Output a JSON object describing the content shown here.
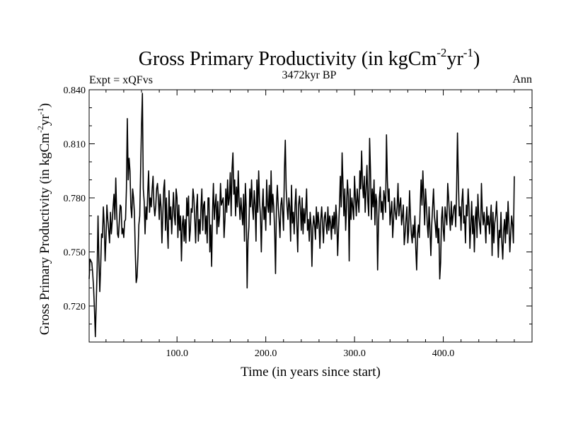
{
  "chart_data": {
    "type": "line",
    "title": "Gross Primary Productivity (in kgCm",
    "title_sup1": "-2",
    "title_mid": "yr",
    "title_sup2": "-1",
    "title_end": ")",
    "subtitle": "3472kyr BP",
    "left_label": "Expt = xQFvs",
    "right_label": "Ann",
    "xlabel": "Time (in years since start)",
    "ylabel_main": "Gross Primary Productivity (in kgCm",
    "ylabel_sup1": "-2",
    "ylabel_mid": "yr",
    "ylabel_sup2": "-1",
    "ylabel_end": ")",
    "xlim": [
      1,
      500
    ],
    "ylim": [
      0.7,
      0.84
    ],
    "xticks": [
      100,
      200,
      300,
      400
    ],
    "xtick_labels": [
      "100.0",
      "200.0",
      "300.0",
      "400.0"
    ],
    "yticks": [
      0.72,
      0.75,
      0.78,
      0.81,
      0.84
    ],
    "ytick_labels": [
      "0.720",
      "0.750",
      "0.780",
      "0.810",
      "0.840"
    ],
    "series": [
      {
        "name": "Gross Primary Productivity",
        "x_start": 1,
        "x_step": 1,
        "values": [
          0.735,
          0.746,
          0.745,
          0.744,
          0.738,
          0.73,
          0.718,
          0.703,
          0.722,
          0.74,
          0.77,
          0.745,
          0.728,
          0.742,
          0.76,
          0.758,
          0.775,
          0.765,
          0.745,
          0.758,
          0.776,
          0.768,
          0.762,
          0.755,
          0.772,
          0.76,
          0.767,
          0.775,
          0.782,
          0.768,
          0.791,
          0.772,
          0.76,
          0.758,
          0.767,
          0.776,
          0.775,
          0.76,
          0.763,
          0.758,
          0.767,
          0.768,
          0.785,
          0.824,
          0.79,
          0.802,
          0.795,
          0.775,
          0.769,
          0.785,
          0.78,
          0.772,
          0.75,
          0.733,
          0.736,
          0.748,
          0.765,
          0.77,
          0.795,
          0.82,
          0.838,
          0.785,
          0.778,
          0.76,
          0.775,
          0.768,
          0.783,
          0.795,
          0.772,
          0.78,
          0.775,
          0.785,
          0.792,
          0.776,
          0.77,
          0.775,
          0.785,
          0.788,
          0.78,
          0.768,
          0.782,
          0.775,
          0.755,
          0.77,
          0.785,
          0.79,
          0.762,
          0.78,
          0.764,
          0.752,
          0.784,
          0.768,
          0.775,
          0.76,
          0.772,
          0.783,
          0.77,
          0.765,
          0.785,
          0.78,
          0.758,
          0.776,
          0.762,
          0.77,
          0.745,
          0.765,
          0.77,
          0.756,
          0.768,
          0.755,
          0.78,
          0.77,
          0.781,
          0.756,
          0.762,
          0.774,
          0.772,
          0.785,
          0.78,
          0.768,
          0.755,
          0.775,
          0.782,
          0.756,
          0.768,
          0.76,
          0.775,
          0.785,
          0.762,
          0.776,
          0.778,
          0.76,
          0.77,
          0.755,
          0.78,
          0.78,
          0.75,
          0.765,
          0.742,
          0.772,
          0.788,
          0.768,
          0.776,
          0.782,
          0.76,
          0.778,
          0.764,
          0.77,
          0.788,
          0.776,
          0.778,
          0.78,
          0.758,
          0.768,
          0.785,
          0.772,
          0.79,
          0.776,
          0.78,
          0.794,
          0.77,
          0.796,
          0.805,
          0.782,
          0.79,
          0.77,
          0.786,
          0.775,
          0.795,
          0.778,
          0.768,
          0.78,
          0.772,
          0.765,
          0.782,
          0.756,
          0.788,
          0.775,
          0.73,
          0.756,
          0.764,
          0.785,
          0.775,
          0.79,
          0.775,
          0.768,
          0.784,
          0.776,
          0.756,
          0.79,
          0.772,
          0.795,
          0.778,
          0.77,
          0.75,
          0.774,
          0.785,
          0.768,
          0.775,
          0.762,
          0.79,
          0.776,
          0.772,
          0.787,
          0.765,
          0.795,
          0.772,
          0.782,
          0.775,
          0.762,
          0.738,
          0.775,
          0.787,
          0.776,
          0.768,
          0.758,
          0.776,
          0.78,
          0.772,
          0.762,
          0.795,
          0.812,
          0.785,
          0.775,
          0.768,
          0.78,
          0.775,
          0.756,
          0.787,
          0.766,
          0.772,
          0.76,
          0.776,
          0.785,
          0.765,
          0.75,
          0.776,
          0.781,
          0.774,
          0.762,
          0.78,
          0.76,
          0.774,
          0.766,
          0.773,
          0.785,
          0.762,
          0.768,
          0.756,
          0.772,
          0.765,
          0.742,
          0.763,
          0.77,
          0.765,
          0.757,
          0.775,
          0.763,
          0.772,
          0.765,
          0.752,
          0.768,
          0.775,
          0.765,
          0.755,
          0.769,
          0.772,
          0.765,
          0.76,
          0.775,
          0.762,
          0.77,
          0.766,
          0.757,
          0.77,
          0.763,
          0.772,
          0.76,
          0.776,
          0.768,
          0.748,
          0.763,
          0.775,
          0.792,
          0.775,
          0.805,
          0.788,
          0.77,
          0.785,
          0.762,
          0.775,
          0.79,
          0.781,
          0.745,
          0.785,
          0.768,
          0.78,
          0.775,
          0.768,
          0.792,
          0.78,
          0.77,
          0.785,
          0.778,
          0.772,
          0.795,
          0.785,
          0.806,
          0.788,
          0.78,
          0.792,
          0.772,
          0.785,
          0.798,
          0.778,
          0.77,
          0.813,
          0.795,
          0.768,
          0.785,
          0.775,
          0.79,
          0.765,
          0.782,
          0.778,
          0.74,
          0.765,
          0.78,
          0.786,
          0.772,
          0.778,
          0.768,
          0.784,
          0.78,
          0.772,
          0.815,
          0.79,
          0.778,
          0.785,
          0.765,
          0.772,
          0.778,
          0.758,
          0.768,
          0.78,
          0.772,
          0.768,
          0.775,
          0.788,
          0.77,
          0.776,
          0.78,
          0.765,
          0.77,
          0.776,
          0.754,
          0.76,
          0.768,
          0.775,
          0.755,
          0.762,
          0.784,
          0.77,
          0.76,
          0.755,
          0.765,
          0.758,
          0.77,
          0.752,
          0.74,
          0.76,
          0.765,
          0.758,
          0.775,
          0.79,
          0.776,
          0.795,
          0.78,
          0.765,
          0.785,
          0.776,
          0.765,
          0.758,
          0.775,
          0.762,
          0.748,
          0.765,
          0.775,
          0.785,
          0.77,
          0.765,
          0.758,
          0.773,
          0.755,
          0.763,
          0.735,
          0.744,
          0.768,
          0.775,
          0.762,
          0.756,
          0.775,
          0.77,
          0.765,
          0.788,
          0.78,
          0.77,
          0.762,
          0.778,
          0.765,
          0.77,
          0.775,
          0.776,
          0.764,
          0.784,
          0.816,
          0.79,
          0.77,
          0.775,
          0.762,
          0.778,
          0.785,
          0.766,
          0.77,
          0.755,
          0.776,
          0.77,
          0.785,
          0.775,
          0.752,
          0.765,
          0.778,
          0.76,
          0.77,
          0.75,
          0.768,
          0.775,
          0.758,
          0.782,
          0.77,
          0.765,
          0.76,
          0.788,
          0.772,
          0.765,
          0.772,
          0.765,
          0.755,
          0.775,
          0.765,
          0.77,
          0.76,
          0.768,
          0.776,
          0.748,
          0.772,
          0.755,
          0.766,
          0.77,
          0.778,
          0.765,
          0.747,
          0.762,
          0.758,
          0.772,
          0.755,
          0.746,
          0.762,
          0.768,
          0.755,
          0.772,
          0.76,
          0.778,
          0.765,
          0.75,
          0.76,
          0.77,
          0.765,
          0.755,
          0.792
        ]
      }
    ]
  }
}
